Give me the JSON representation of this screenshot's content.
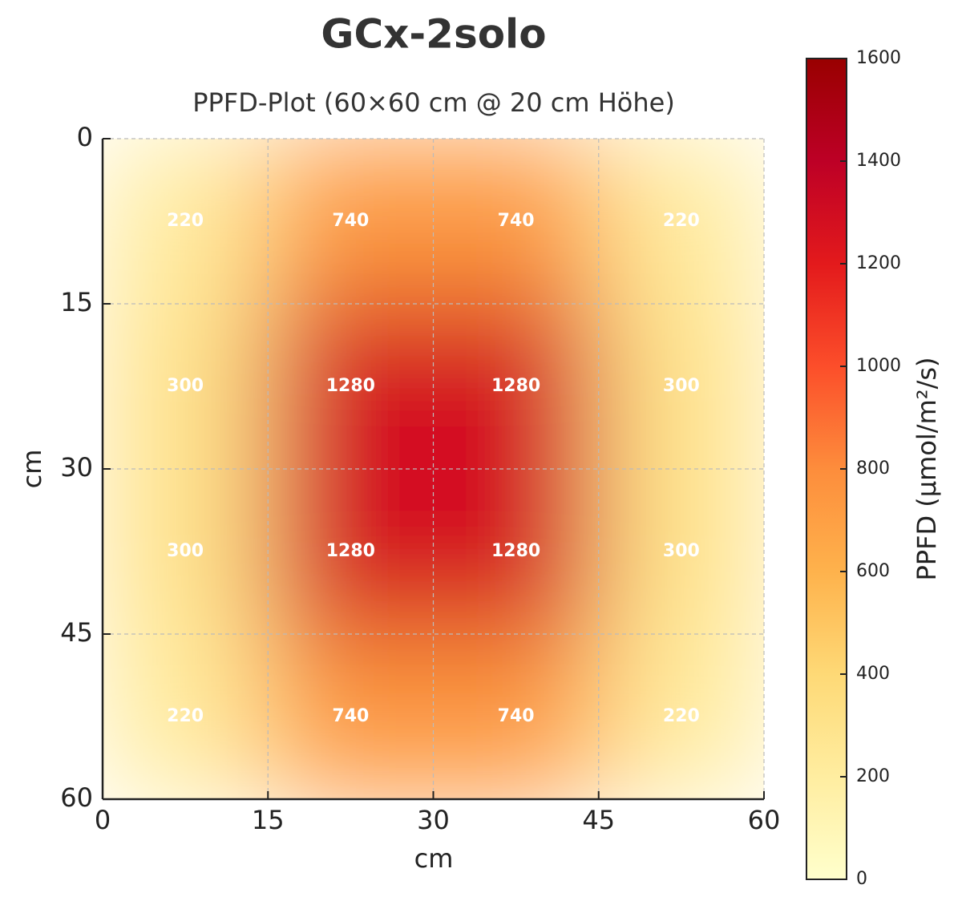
{
  "chart_data": {
    "type": "heatmap",
    "title": "GCx-2solo",
    "subtitle": "PPFD-Plot (60×60 cm @ 20 cm Höhe)",
    "x_label": "cm",
    "y_label": "cm",
    "xlim": [
      0,
      60
    ],
    "xticks": [
      0,
      15,
      30,
      45,
      60
    ],
    "ylim": [
      60,
      0
    ],
    "yticks": [
      0,
      15,
      30,
      45,
      60
    ],
    "grid": true,
    "values": [
      [
        220,
        740,
        740,
        220
      ],
      [
        300,
        1280,
        1280,
        300
      ],
      [
        300,
        1280,
        1280,
        300
      ],
      [
        220,
        740,
        740,
        220
      ]
    ],
    "colormap": [
      "#ffffcc",
      "#ffeda0",
      "#fed976",
      "#feb24c",
      "#fd8d3c",
      "#fc4e2a",
      "#e31a1c",
      "#bd0026",
      "#990000"
    ],
    "colorbar": {
      "label": "PPFD (µmol/m²/s)",
      "lim": [
        0,
        1600
      ],
      "ticks": [
        0,
        200,
        400,
        600,
        800,
        1000,
        1200,
        1400,
        1600
      ]
    }
  }
}
